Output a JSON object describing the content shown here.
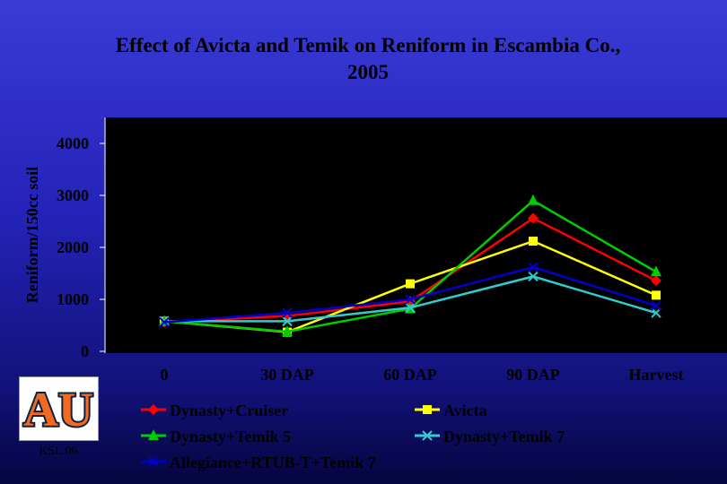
{
  "chart_data": {
    "type": "line",
    "title": "Effect of Avicta and Temik on Reniform in Escambia Co., 2005",
    "ylabel": "Reniform/150cc soil",
    "xlabel": "",
    "categories": [
      "0",
      "30 DAP",
      "60 DAP",
      "90 DAP",
      "Harvest"
    ],
    "ylim": [
      0,
      4000
    ],
    "yticks": [
      "0",
      "1000",
      "2000",
      "3000",
      "4000"
    ],
    "grid": false,
    "legend_position": "bottom",
    "series": [
      {
        "name": "Dynasty+Cruiser",
        "color": "#ff0000",
        "marker": "diamond",
        "values": [
          560,
          680,
          960,
          2560,
          1360
        ]
      },
      {
        "name": "Avicta",
        "color": "#ffff00",
        "marker": "square",
        "values": [
          580,
          370,
          1300,
          2120,
          1080
        ]
      },
      {
        "name": "Dynasty+Temik 5",
        "color": "#00cc00",
        "marker": "triangle",
        "values": [
          580,
          380,
          820,
          2900,
          1530
        ]
      },
      {
        "name": "Dynasty+Temik 7",
        "color": "#33cccc",
        "marker": "x",
        "values": [
          580,
          580,
          840,
          1440,
          740
        ]
      },
      {
        "name": "Allegiance+RTUB-T+Temik 7",
        "color": "#0000cc",
        "marker": "x",
        "values": [
          560,
          740,
          1000,
          1620,
          880
        ]
      }
    ]
  },
  "logo": {
    "text": "AU"
  },
  "footer_label": "KSL 06"
}
